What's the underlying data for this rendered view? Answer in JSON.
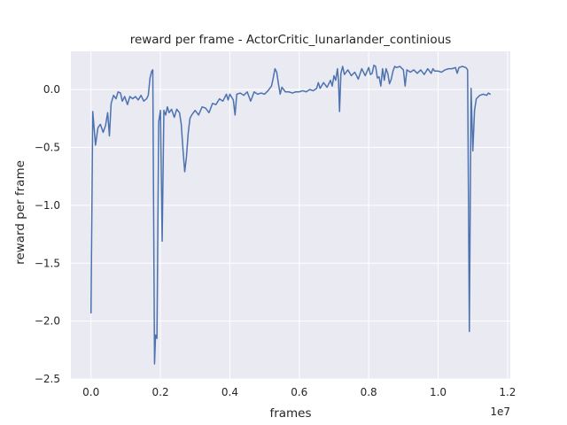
{
  "chart_data": {
    "type": "line",
    "title": "reward per frame - ActorCritic_lunarlander_continious",
    "xlabel": "frames",
    "ylabel": "reward per frame",
    "x_offset_label": "1e7",
    "xlim": [
      -0.058,
      1.208
    ],
    "ylim": [
      -2.5,
      0.33
    ],
    "x_ticks": [
      0.0,
      0.2,
      0.4,
      0.6,
      0.8,
      1.0,
      1.2
    ],
    "x_tick_labels": [
      "0.0",
      "0.2",
      "0.4",
      "0.6",
      "0.8",
      "1.0",
      "1.2"
    ],
    "y_ticks": [
      -2.5,
      -2.0,
      -1.5,
      -1.0,
      -0.5,
      0.0
    ],
    "y_tick_labels": [
      "−2.5",
      "−2.0",
      "−1.5",
      "−1.0",
      "−0.5",
      "0.0"
    ],
    "grid": true,
    "background_color": "#eaeaf2",
    "grid_color": "#ffffff",
    "series": [
      {
        "color": "#4c72b0",
        "points": [
          [
            0.0,
            -1.93
          ],
          [
            0.005,
            -0.19
          ],
          [
            0.013,
            -0.48
          ],
          [
            0.02,
            -0.33
          ],
          [
            0.027,
            -0.3
          ],
          [
            0.035,
            -0.37
          ],
          [
            0.042,
            -0.31
          ],
          [
            0.048,
            -0.2
          ],
          [
            0.053,
            -0.4
          ],
          [
            0.058,
            -0.12
          ],
          [
            0.065,
            -0.05
          ],
          [
            0.072,
            -0.08
          ],
          [
            0.078,
            -0.02
          ],
          [
            0.085,
            -0.03
          ],
          [
            0.09,
            -0.1
          ],
          [
            0.097,
            -0.06
          ],
          [
            0.105,
            -0.13
          ],
          [
            0.112,
            -0.06
          ],
          [
            0.12,
            -0.08
          ],
          [
            0.128,
            -0.06
          ],
          [
            0.136,
            -0.09
          ],
          [
            0.144,
            -0.05
          ],
          [
            0.152,
            -0.1
          ],
          [
            0.16,
            -0.08
          ],
          [
            0.165,
            -0.05
          ],
          [
            0.17,
            0.1
          ],
          [
            0.175,
            0.16
          ],
          [
            0.178,
            0.17
          ],
          [
            0.183,
            -2.37
          ],
          [
            0.186,
            -2.12
          ],
          [
            0.19,
            -2.15
          ],
          [
            0.195,
            -0.28
          ],
          [
            0.2,
            -0.18
          ],
          [
            0.205,
            -1.31
          ],
          [
            0.21,
            -0.18
          ],
          [
            0.215,
            -0.22
          ],
          [
            0.22,
            -0.15
          ],
          [
            0.225,
            -0.2
          ],
          [
            0.232,
            -0.17
          ],
          [
            0.24,
            -0.24
          ],
          [
            0.247,
            -0.17
          ],
          [
            0.255,
            -0.2
          ],
          [
            0.26,
            -0.3
          ],
          [
            0.265,
            -0.52
          ],
          [
            0.27,
            -0.71
          ],
          [
            0.275,
            -0.58
          ],
          [
            0.28,
            -0.38
          ],
          [
            0.285,
            -0.25
          ],
          [
            0.29,
            -0.22
          ],
          [
            0.3,
            -0.18
          ],
          [
            0.31,
            -0.22
          ],
          [
            0.32,
            -0.15
          ],
          [
            0.33,
            -0.16
          ],
          [
            0.34,
            -0.2
          ],
          [
            0.35,
            -0.12
          ],
          [
            0.36,
            -0.13
          ],
          [
            0.37,
            -0.08
          ],
          [
            0.38,
            -0.1
          ],
          [
            0.39,
            -0.04
          ],
          [
            0.395,
            -0.09
          ],
          [
            0.4,
            -0.04
          ],
          [
            0.41,
            -0.09
          ],
          [
            0.415,
            -0.22
          ],
          [
            0.42,
            -0.04
          ],
          [
            0.43,
            -0.03
          ],
          [
            0.44,
            -0.05
          ],
          [
            0.45,
            -0.02
          ],
          [
            0.46,
            -0.1
          ],
          [
            0.47,
            -0.02
          ],
          [
            0.48,
            -0.04
          ],
          [
            0.49,
            -0.03
          ],
          [
            0.5,
            -0.04
          ],
          [
            0.51,
            -0.01
          ],
          [
            0.52,
            0.03
          ],
          [
            0.525,
            0.1
          ],
          [
            0.53,
            0.18
          ],
          [
            0.535,
            0.15
          ],
          [
            0.54,
            0.05
          ],
          [
            0.545,
            -0.04
          ],
          [
            0.55,
            0.02
          ],
          [
            0.56,
            -0.02
          ],
          [
            0.57,
            -0.02
          ],
          [
            0.58,
            -0.03
          ],
          [
            0.59,
            -0.02
          ],
          [
            0.6,
            -0.02
          ],
          [
            0.61,
            -0.01
          ],
          [
            0.62,
            -0.02
          ],
          [
            0.63,
            0.0
          ],
          [
            0.64,
            -0.01
          ],
          [
            0.65,
            0.01
          ],
          [
            0.655,
            0.06
          ],
          [
            0.66,
            0.01
          ],
          [
            0.67,
            0.06
          ],
          [
            0.68,
            0.02
          ],
          [
            0.69,
            0.08
          ],
          [
            0.695,
            0.03
          ],
          [
            0.7,
            0.12
          ],
          [
            0.705,
            0.08
          ],
          [
            0.71,
            0.18
          ],
          [
            0.713,
            0.08
          ],
          [
            0.716,
            -0.19
          ],
          [
            0.72,
            0.14
          ],
          [
            0.725,
            0.2
          ],
          [
            0.73,
            0.13
          ],
          [
            0.74,
            0.17
          ],
          [
            0.75,
            0.12
          ],
          [
            0.76,
            0.15
          ],
          [
            0.77,
            0.09
          ],
          [
            0.78,
            0.18
          ],
          [
            0.79,
            0.12
          ],
          [
            0.8,
            0.19
          ],
          [
            0.805,
            0.13
          ],
          [
            0.81,
            0.14
          ],
          [
            0.815,
            0.21
          ],
          [
            0.82,
            0.2
          ],
          [
            0.825,
            0.1
          ],
          [
            0.83,
            0.11
          ],
          [
            0.835,
            0.03
          ],
          [
            0.84,
            0.18
          ],
          [
            0.845,
            0.08
          ],
          [
            0.85,
            0.18
          ],
          [
            0.855,
            0.14
          ],
          [
            0.86,
            0.05
          ],
          [
            0.865,
            0.09
          ],
          [
            0.87,
            0.16
          ],
          [
            0.875,
            0.2
          ],
          [
            0.88,
            0.19
          ],
          [
            0.89,
            0.2
          ],
          [
            0.9,
            0.17
          ],
          [
            0.905,
            0.03
          ],
          [
            0.91,
            0.17
          ],
          [
            0.92,
            0.15
          ],
          [
            0.93,
            0.17
          ],
          [
            0.94,
            0.14
          ],
          [
            0.95,
            0.17
          ],
          [
            0.96,
            0.13
          ],
          [
            0.97,
            0.18
          ],
          [
            0.98,
            0.14
          ],
          [
            0.985,
            0.18
          ],
          [
            0.99,
            0.16
          ],
          [
            1.0,
            0.16
          ],
          [
            1.01,
            0.15
          ],
          [
            1.02,
            0.17
          ],
          [
            1.03,
            0.18
          ],
          [
            1.04,
            0.18
          ],
          [
            1.05,
            0.19
          ],
          [
            1.055,
            0.14
          ],
          [
            1.06,
            0.19
          ],
          [
            1.07,
            0.2
          ],
          [
            1.08,
            0.19
          ],
          [
            1.085,
            0.17
          ],
          [
            1.09,
            -2.09
          ],
          [
            1.095,
            0.01
          ],
          [
            1.1,
            -0.53
          ],
          [
            1.105,
            -0.18
          ],
          [
            1.11,
            -0.08
          ],
          [
            1.12,
            -0.05
          ],
          [
            1.13,
            -0.04
          ],
          [
            1.14,
            -0.05
          ],
          [
            1.145,
            -0.03
          ],
          [
            1.15,
            -0.04
          ]
        ]
      }
    ]
  }
}
